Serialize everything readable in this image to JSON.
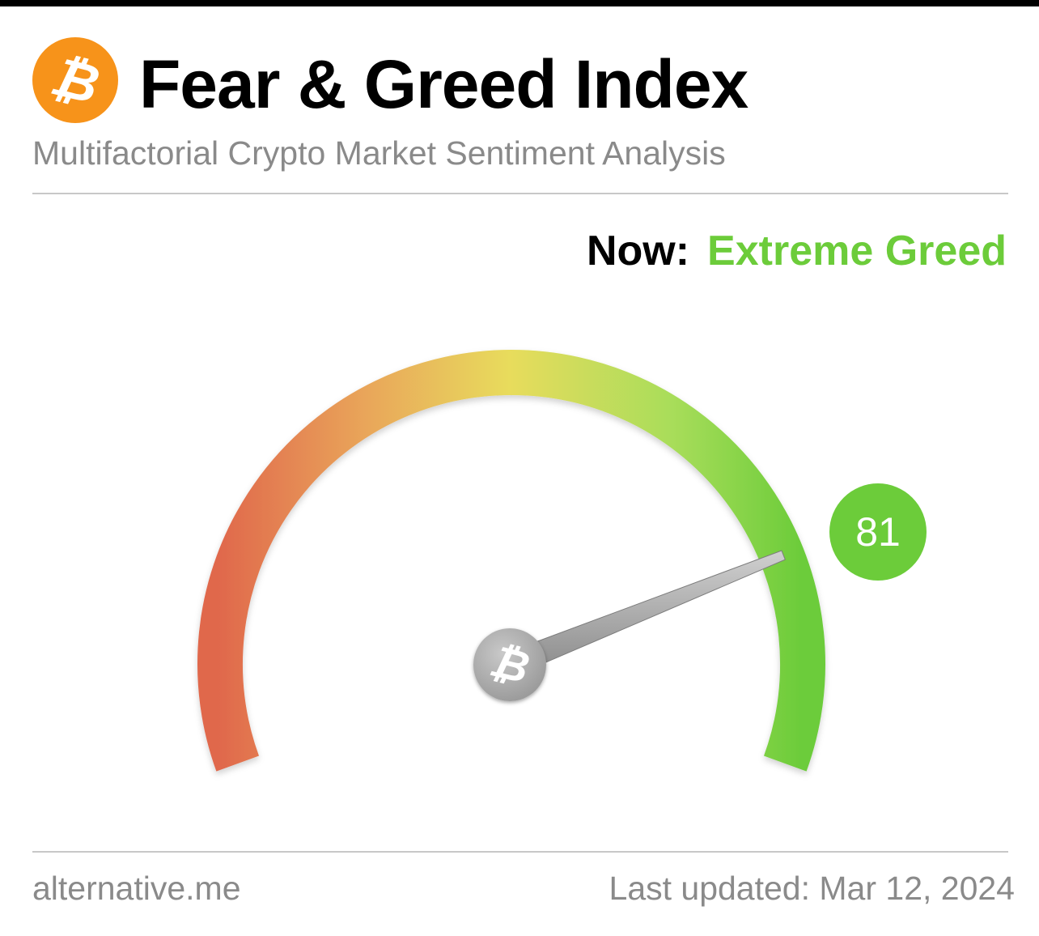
{
  "header": {
    "logo_icon": "bitcoin-icon",
    "title": "Fear & Greed Index",
    "subtitle": "Multifactorial Crypto Market Sentiment Analysis"
  },
  "status": {
    "now_label": "Now:",
    "classification": "Extreme Greed",
    "classification_color": "#6ccc3a"
  },
  "gauge": {
    "value": 81,
    "value_text": "81",
    "min": 0,
    "max": 100,
    "hub_icon": "bitcoin-icon",
    "colors": {
      "fear": "#e0684c",
      "neutral": "#e8dc5c",
      "greed": "#6ccc3a",
      "badge": "#6ccc3a"
    }
  },
  "footer": {
    "source": "alternative.me",
    "last_updated": "Last updated: Mar 12, 2024"
  }
}
